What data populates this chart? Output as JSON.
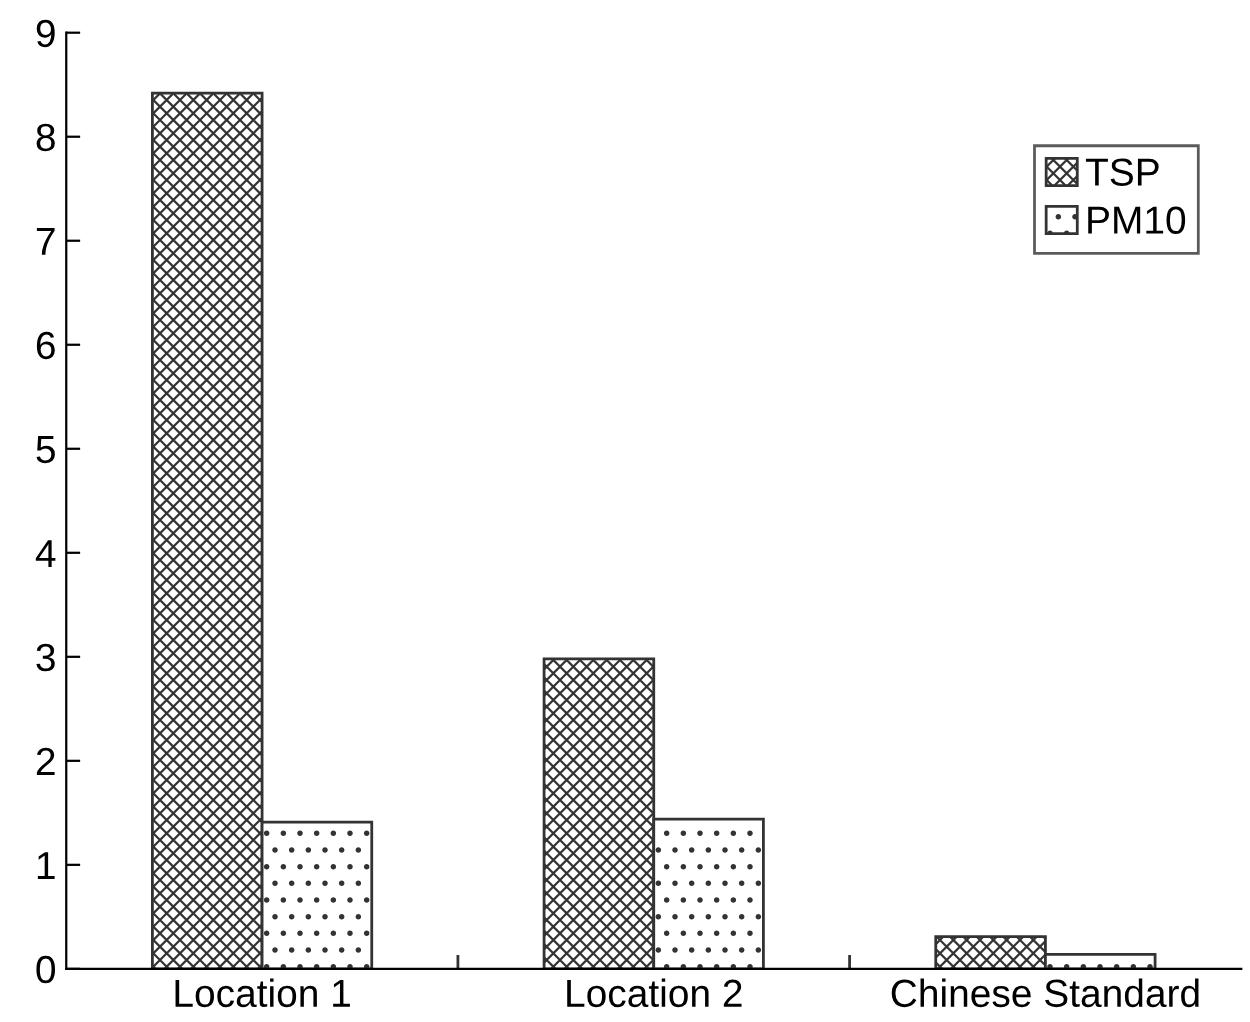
{
  "chart_data": {
    "type": "bar",
    "categories": [
      "Location 1",
      "Location 2",
      "Chinese Standard"
    ],
    "series": [
      {
        "name": "TSP",
        "color": "#333333",
        "values": [
          8.42,
          2.98,
          0.31
        ]
      },
      {
        "name": "PM10",
        "color": "#333333",
        "values": [
          1.41,
          1.44,
          0.14
        ]
      }
    ],
    "ylim": [
      0,
      9
    ],
    "yticks": [
      0,
      1,
      2,
      3,
      4,
      5,
      6,
      7,
      8,
      9
    ],
    "grid": false,
    "legend": "top right"
  }
}
